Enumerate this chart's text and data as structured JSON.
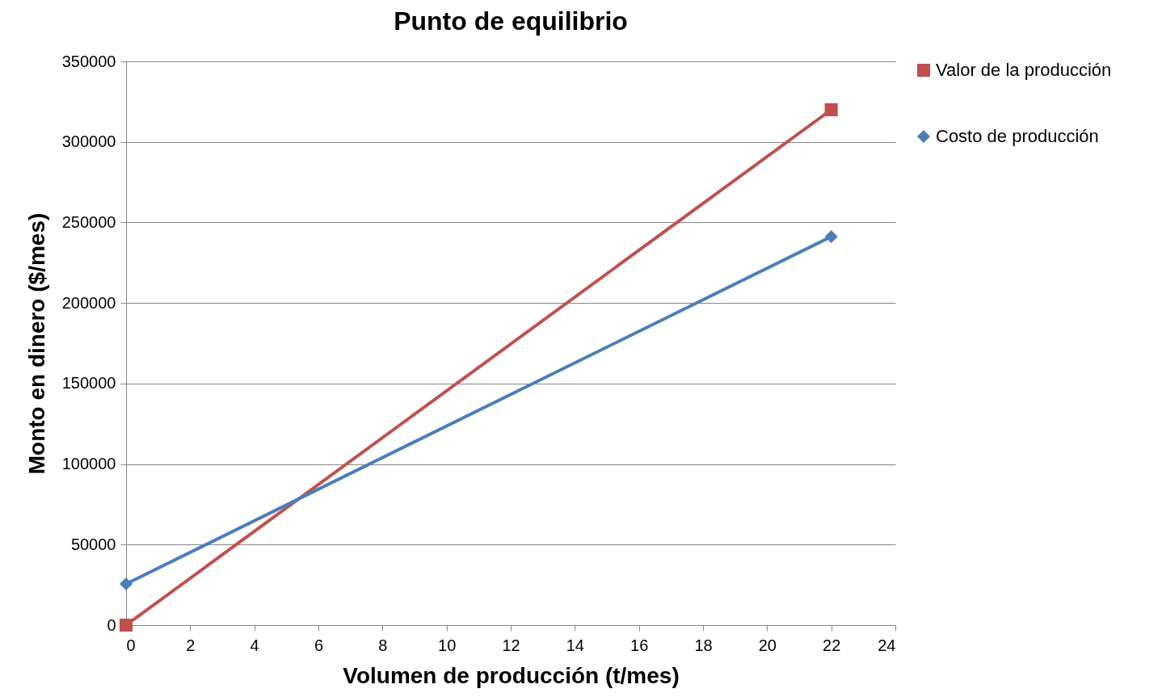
{
  "chart_data": {
    "type": "line",
    "title": "Punto de equilibrio",
    "xlabel": "Volumen de producción (t/mes)",
    "ylabel": "Monto en dinero ($/mes)",
    "x": [
      0,
      22
    ],
    "series": [
      {
        "name": "Valor de la producción",
        "color": "#c0504d",
        "marker": "square",
        "values": [
          0,
          320000
        ]
      },
      {
        "name": "Costo de producción",
        "color": "#4a7ebb",
        "marker": "diamond",
        "values": [
          25600,
          241200
        ]
      }
    ],
    "xlim": [
      0,
      24
    ],
    "xticks": [
      0,
      2,
      4,
      6,
      8,
      10,
      12,
      14,
      16,
      18,
      20,
      22,
      24
    ],
    "ylim": [
      0,
      350000
    ],
    "yticks": [
      0,
      50000,
      100000,
      150000,
      200000,
      250000,
      300000,
      350000
    ],
    "grid": "y",
    "legend": "right"
  }
}
